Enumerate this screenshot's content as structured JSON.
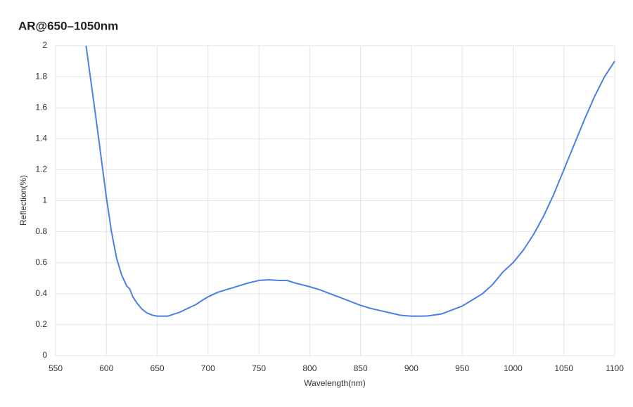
{
  "chart_data": {
    "type": "line",
    "title": "AR@650–1050nm",
    "x_label": "Wavelength(nm)",
    "y_label": "Reflection(%)",
    "xlim": [
      550,
      1100
    ],
    "ylim": [
      0,
      2
    ],
    "xticks": [
      550,
      600,
      650,
      700,
      750,
      800,
      850,
      900,
      950,
      1000,
      1050,
      1100
    ],
    "yticks": [
      0,
      0.2,
      0.4,
      0.6,
      0.8,
      1,
      1.2,
      1.4,
      1.6,
      1.8,
      2
    ],
    "grid": true,
    "x": [
      580,
      585,
      590,
      595,
      600,
      605,
      610,
      615,
      620,
      623,
      626,
      630,
      635,
      640,
      645,
      650,
      660,
      665,
      672,
      680,
      688,
      695,
      700,
      710,
      720,
      730,
      740,
      750,
      760,
      770,
      778,
      785,
      800,
      810,
      820,
      830,
      840,
      850,
      860,
      870,
      880,
      890,
      900,
      910,
      915,
      920,
      930,
      940,
      950,
      960,
      970,
      980,
      985,
      990,
      1000,
      1010,
      1020,
      1030,
      1040,
      1050,
      1060,
      1070,
      1080,
      1090,
      1100
    ],
    "series": [
      {
        "name": "Reflection",
        "color": "#4a7fe8",
        "values": [
          2.0,
          1.76,
          1.52,
          1.27,
          1.02,
          0.8,
          0.63,
          0.52,
          0.45,
          0.43,
          0.38,
          0.34,
          0.3,
          0.275,
          0.262,
          0.255,
          0.255,
          0.265,
          0.28,
          0.305,
          0.33,
          0.36,
          0.38,
          0.41,
          0.43,
          0.45,
          0.47,
          0.485,
          0.49,
          0.485,
          0.485,
          0.47,
          0.445,
          0.425,
          0.4,
          0.375,
          0.35,
          0.325,
          0.305,
          0.29,
          0.275,
          0.26,
          0.255,
          0.255,
          0.256,
          0.26,
          0.27,
          0.295,
          0.32,
          0.36,
          0.4,
          0.46,
          0.5,
          0.54,
          0.6,
          0.68,
          0.78,
          0.9,
          1.04,
          1.2,
          1.36,
          1.52,
          1.67,
          1.8,
          1.9
        ]
      }
    ]
  }
}
